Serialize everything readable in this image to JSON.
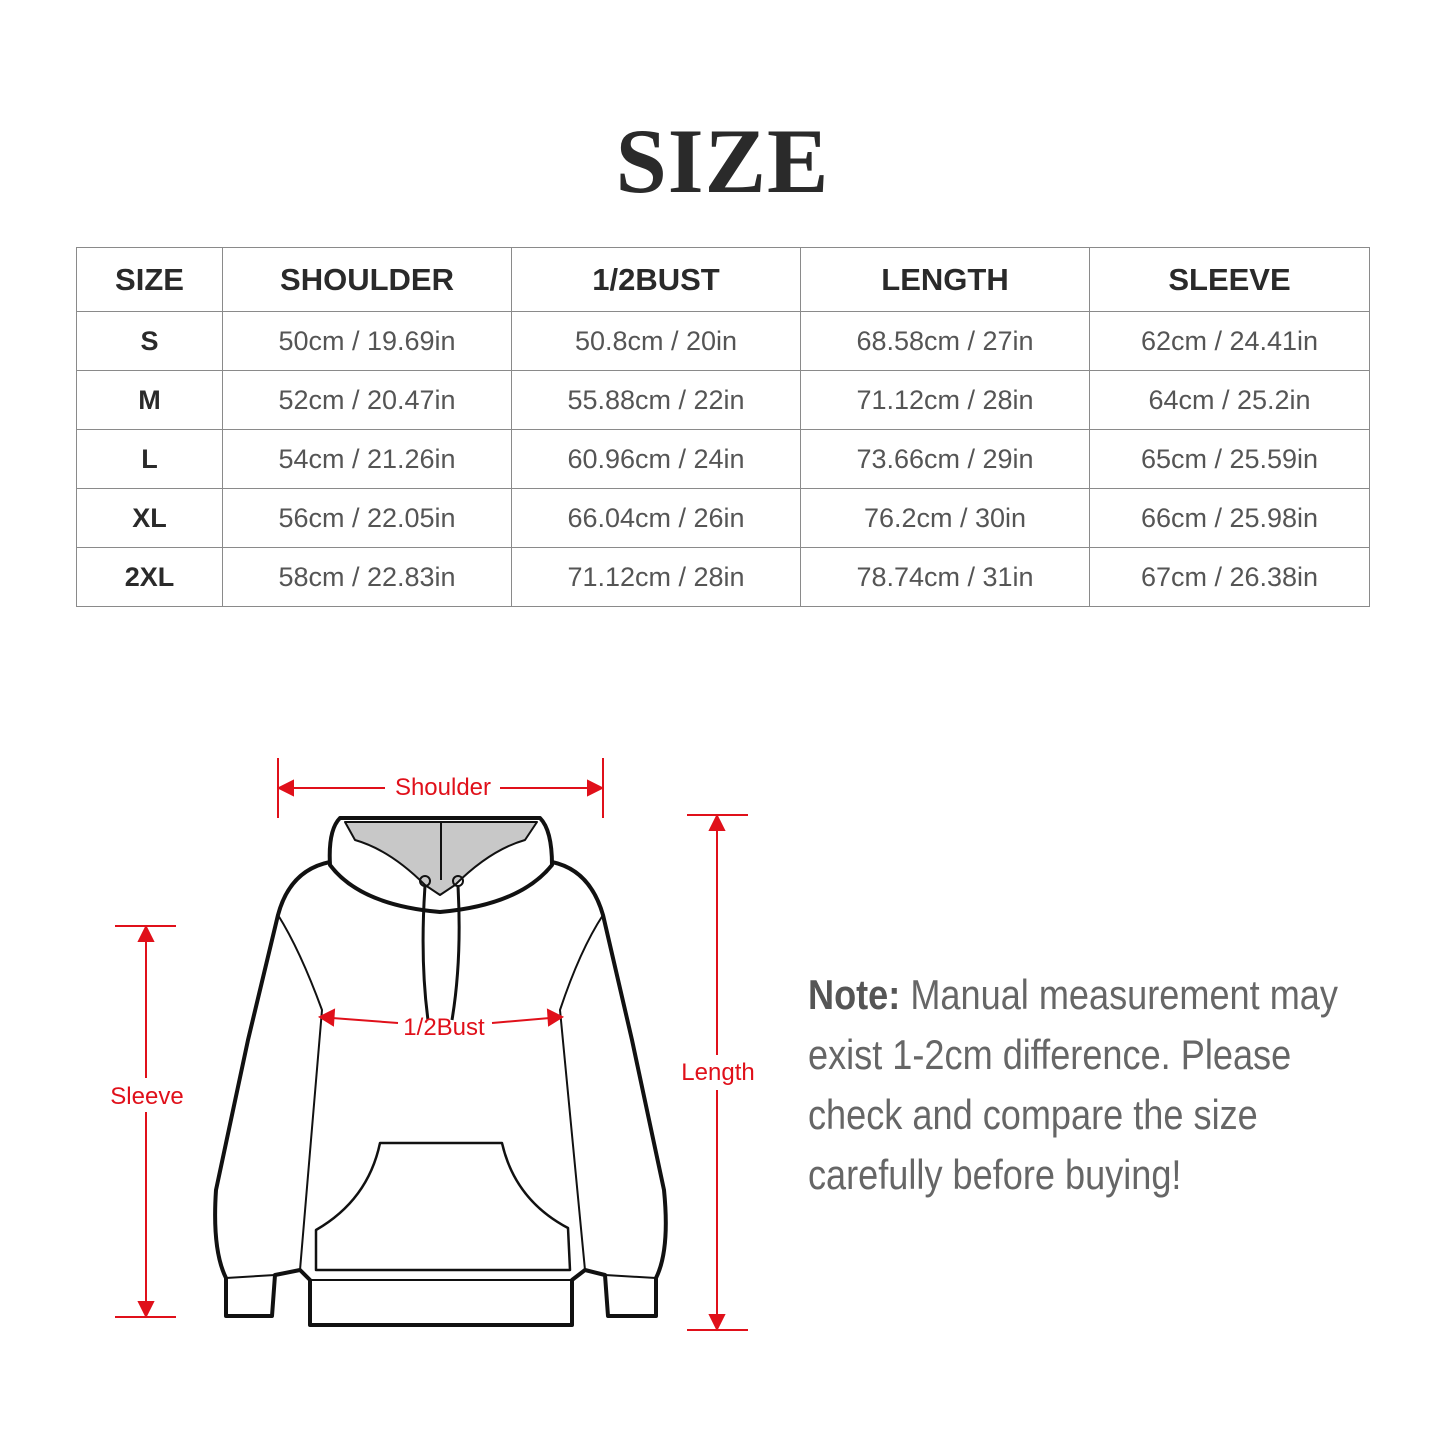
{
  "title": "SIZE",
  "table": {
    "headers": [
      "SIZE",
      "SHOULDER",
      "1/2BUST",
      "LENGTH",
      "SLEEVE"
    ],
    "rows": [
      [
        "S",
        "50cm / 19.69in",
        "50.8cm / 20in",
        "68.58cm / 27in",
        "62cm / 24.41in"
      ],
      [
        "M",
        "52cm / 20.47in",
        "55.88cm / 22in",
        "71.12cm / 28in",
        "64cm / 25.2in"
      ],
      [
        "L",
        "54cm / 21.26in",
        "60.96cm / 24in",
        "73.66cm / 29in",
        "65cm / 25.59in"
      ],
      [
        "XL",
        "56cm / 22.05in",
        "66.04cm / 26in",
        "76.2cm / 30in",
        "66cm / 25.98in"
      ],
      [
        "2XL",
        "58cm / 22.83in",
        "71.12cm / 28in",
        "78.74cm / 31in",
        "67cm / 26.38in"
      ]
    ]
  },
  "diagram": {
    "shoulder": "Shoulder",
    "bust": "1/2Bust",
    "sleeve": "Sleeve",
    "length": "Length",
    "accent_color": "#e0101a"
  },
  "note": {
    "label": "Note:",
    "text": " Manual measurement may exist 1-2cm difference. Please check and compare the size carefully before buying!"
  }
}
